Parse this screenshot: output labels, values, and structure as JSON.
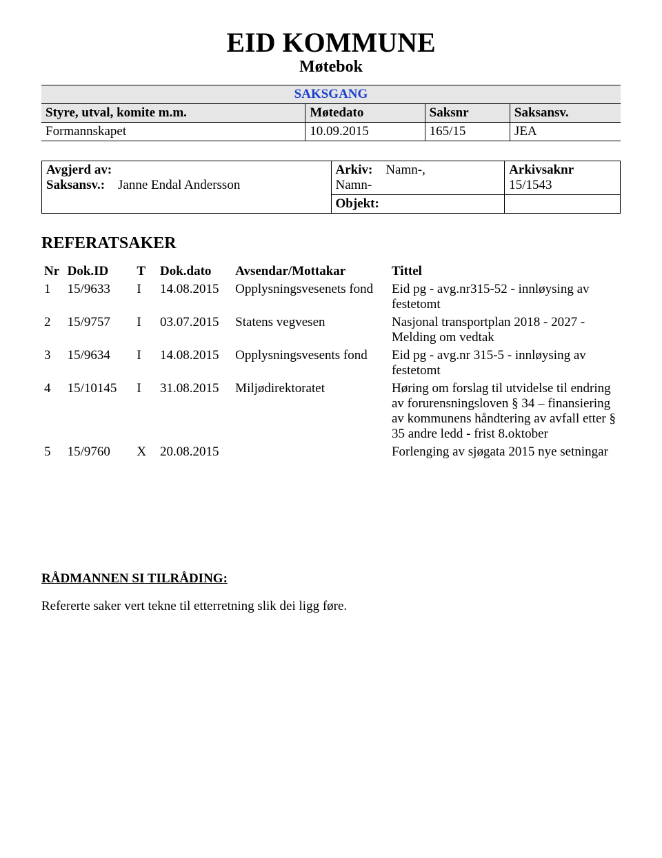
{
  "header": {
    "title": "EID KOMMUNE",
    "subtitle": "Møtebok"
  },
  "saksgang": {
    "label": "SAKSGANG",
    "columns": [
      "Styre, utval, komite m.m.",
      "Møtedato",
      "Saksnr",
      "Saksansv."
    ],
    "row": [
      "Formannskapet",
      "10.09.2015",
      "165/15",
      "JEA"
    ]
  },
  "meta": {
    "avgjerd_label": "Avgjerd av:",
    "saksansv_label": "Saksansv.:",
    "saksansv_value": "Janne Endal Andersson",
    "arkiv_label": "Arkiv:",
    "arkiv_value": "Namn-,\nNamn-",
    "objekt_label": "Objekt:",
    "arkivsaknr_label": "Arkivsaknr",
    "arkivsaknr_value": "15/1543"
  },
  "section_heading": "REFERATSAKER",
  "ref": {
    "columns": [
      "Nr",
      "Dok.ID",
      "T",
      "Dok.dato",
      "Avsendar/Mottakar",
      "Tittel"
    ],
    "rows": [
      {
        "nr": "1",
        "id": "15/9633",
        "t": "I",
        "date": "14.08.2015",
        "av": "Opplysningsvesenets fond",
        "tittel": "Eid pg - avg.nr315-52 - innløysing av festetomt"
      },
      {
        "nr": "2",
        "id": "15/9757",
        "t": "I",
        "date": "03.07.2015",
        "av": "Statens vegvesen",
        "tittel": "Nasjonal transportplan 2018 - 2027 - Melding om vedtak"
      },
      {
        "nr": "3",
        "id": "15/9634",
        "t": "I",
        "date": "14.08.2015",
        "av": "Opplysningsvesents fond",
        "tittel": "Eid pg - avg.nr 315-5 - innløysing av festetomt"
      },
      {
        "nr": "4",
        "id": "15/10145",
        "t": "I",
        "date": "31.08.2015",
        "av": "Miljødirektoratet",
        "tittel": "Høring om forslag til utvidelse til endring av forurensningsloven § 34 – finansiering av kommunens håndtering av avfall etter § 35 andre ledd - frist 8.oktober"
      },
      {
        "nr": "5",
        "id": "15/9760",
        "t": "X",
        "date": "20.08.2015",
        "av": "",
        "tittel": "Forlenging av sjøgata 2015 nye setningar"
      }
    ]
  },
  "recommendation": {
    "heading": "RÅDMANNEN SI TILRÅDING:",
    "text": "Refererte saker vert tekne til etterretning slik dei ligg føre."
  },
  "colors": {
    "text": "#000000",
    "background": "#ffffff",
    "header_bg": "#e6e6e6",
    "saksgang_label": "#1a3fcf",
    "border": "#000000"
  },
  "typography": {
    "title_size_pt": 30,
    "subtitle_size_pt": 18,
    "body_size_pt": 14,
    "section_heading_size_pt": 18,
    "font_family": "Times New Roman"
  }
}
